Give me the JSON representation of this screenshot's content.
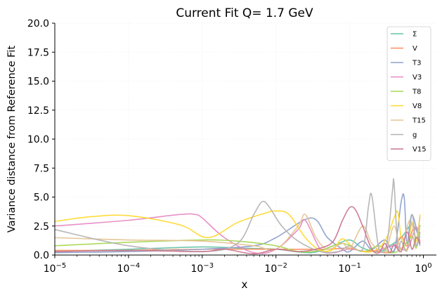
{
  "chart_data": {
    "type": "line",
    "title": "Current Fit Q= 1.7 GeV",
    "xlabel": "x",
    "ylabel": "Variance distance from Reference Fit",
    "x_scale": "log",
    "xlim": [
      1e-05,
      1.5
    ],
    "ylim": [
      0,
      20
    ],
    "x_ticks": [
      {
        "value": 1e-05,
        "base": "10",
        "exp": "−5"
      },
      {
        "value": 0.0001,
        "base": "10",
        "exp": "−4"
      },
      {
        "value": 0.001,
        "base": "10",
        "exp": "−3"
      },
      {
        "value": 0.01,
        "base": "10",
        "exp": "−2"
      },
      {
        "value": 0.1,
        "base": "10",
        "exp": "−1"
      },
      {
        "value": 1,
        "base": "10",
        "exp": "0"
      }
    ],
    "y_ticks": [
      {
        "value": 0,
        "label": "0.0"
      },
      {
        "value": 2.5,
        "label": "2.5"
      },
      {
        "value": 5,
        "label": "5.0"
      },
      {
        "value": 7.5,
        "label": "7.5"
      },
      {
        "value": 10,
        "label": "10.0"
      },
      {
        "value": 12.5,
        "label": "12.5"
      },
      {
        "value": 15,
        "label": "15.0"
      },
      {
        "value": 17.5,
        "label": "17.5"
      },
      {
        "value": 20,
        "label": "20.0"
      }
    ],
    "grid": true,
    "legend_position": "top-right",
    "series": [
      {
        "name": "Σ",
        "color": "#66c2a5",
        "x": [
          1e-05,
          0.0001,
          0.001,
          0.003,
          0.01,
          0.03,
          0.06,
          0.1,
          0.15,
          0.25,
          0.35,
          0.5,
          0.7,
          0.9
        ],
        "y": [
          0.3,
          0.5,
          0.7,
          0.6,
          0.5,
          0.2,
          0.8,
          1.3,
          0.6,
          0.3,
          0.8,
          1.5,
          2.6,
          1.5
        ]
      },
      {
        "name": "V",
        "color": "#fc8d62",
        "x": [
          1e-05,
          0.0001,
          0.001,
          0.01,
          0.05,
          0.1,
          0.15,
          0.2,
          0.3,
          0.4,
          0.5,
          0.6,
          0.75,
          0.9
        ],
        "y": [
          0.4,
          0.4,
          0.5,
          0.5,
          0.5,
          0.6,
          0.3,
          0.4,
          0.2,
          0.4,
          1.6,
          0.8,
          2.4,
          1.2
        ]
      },
      {
        "name": "T3",
        "color": "#8da0cb",
        "x": [
          1e-05,
          0.0001,
          0.001,
          0.005,
          0.01,
          0.03,
          0.05,
          0.08,
          0.1,
          0.15,
          0.2,
          0.3,
          0.4,
          0.5,
          0.55,
          0.6,
          0.7,
          0.9
        ],
        "y": [
          0.2,
          0.3,
          0.5,
          0.8,
          1.5,
          3.2,
          1.5,
          0.5,
          0.3,
          1.2,
          0.5,
          1.3,
          0.3,
          4.6,
          4.9,
          1.0,
          3.5,
          0.8
        ]
      },
      {
        "name": "V3",
        "color": "#e78ac3",
        "x": [
          1e-05,
          0.0001,
          0.0005,
          0.0008,
          0.001,
          0.002,
          0.005,
          0.01,
          0.02,
          0.025,
          0.04,
          0.06,
          0.1,
          0.2,
          0.4,
          0.6,
          0.8,
          0.9
        ],
        "y": [
          2.5,
          3.0,
          3.5,
          3.5,
          3.2,
          1.5,
          0.2,
          0.5,
          2.2,
          3.0,
          0.5,
          0.2,
          0.5,
          0.3,
          0.8,
          0.5,
          2.4,
          1.0
        ]
      },
      {
        "name": "T8",
        "color": "#a6d854",
        "x": [
          1e-05,
          0.0001,
          0.001,
          0.003,
          0.01,
          0.02,
          0.04,
          0.08,
          0.15,
          0.25,
          0.35,
          0.5,
          0.7,
          0.8,
          0.9
        ],
        "y": [
          0.8,
          1.1,
          1.3,
          1.2,
          0.8,
          0.3,
          0.4,
          1.0,
          0.3,
          0.8,
          0.2,
          0.5,
          1.6,
          0.6,
          2.6
        ]
      },
      {
        "name": "V8",
        "color": "#ffd92f",
        "x": [
          1e-05,
          3e-05,
          0.0001,
          0.0005,
          0.0012,
          0.003,
          0.007,
          0.01,
          0.015,
          0.025,
          0.04,
          0.06,
          0.08,
          0.12,
          0.2,
          0.3,
          0.4,
          0.45,
          0.5,
          0.6,
          0.7,
          0.8,
          0.9
        ],
        "y": [
          2.9,
          3.3,
          3.4,
          2.6,
          1.5,
          2.8,
          3.6,
          3.8,
          3.5,
          1.5,
          0.4,
          0.5,
          1.4,
          0.5,
          0.3,
          1.2,
          3.2,
          3.7,
          1.5,
          0.5,
          2.8,
          1.2,
          3.5
        ]
      },
      {
        "name": "T15",
        "color": "#e5c494",
        "x": [
          1e-05,
          0.0001,
          0.001,
          0.005,
          0.01,
          0.02,
          0.025,
          0.035,
          0.05,
          0.08,
          0.1,
          0.15,
          0.2,
          0.3,
          0.4,
          0.5,
          0.65,
          0.8,
          0.9
        ],
        "y": [
          1.5,
          1.3,
          1.2,
          0.8,
          0.5,
          2.5,
          3.5,
          1.5,
          0.5,
          1.0,
          0.5,
          2.5,
          1.0,
          0.3,
          2.5,
          0.5,
          3.0,
          1.5,
          3.3
        ]
      },
      {
        "name": "g",
        "color": "#b3b3b3",
        "x": [
          1e-05,
          0.0001,
          0.001,
          0.003,
          0.005,
          0.0065,
          0.008,
          0.012,
          0.02,
          0.04,
          0.07,
          0.1,
          0.15,
          0.18,
          0.2,
          0.25,
          0.32,
          0.38,
          0.4,
          0.45,
          0.5,
          0.6,
          0.7,
          0.8,
          0.9
        ],
        "y": [
          2.2,
          0.8,
          0.3,
          1.0,
          3.5,
          4.6,
          4.2,
          2.5,
          1.2,
          0.3,
          0.3,
          0.8,
          0.5,
          4.2,
          5.1,
          0.5,
          1.0,
          5.5,
          6.2,
          0.5,
          1.2,
          0.4,
          3.5,
          0.8,
          2.0
        ]
      },
      {
        "name": "V15",
        "color": "#c9778f",
        "x": [
          1e-05,
          0.0001,
          0.001,
          0.002,
          0.005,
          0.01,
          0.02,
          0.04,
          0.06,
          0.08,
          0.1,
          0.12,
          0.15,
          0.2,
          0.25,
          0.3,
          0.35,
          0.4,
          0.5,
          0.6,
          0.7,
          0.8,
          0.9
        ],
        "y": [
          0.3,
          0.4,
          0.3,
          0.5,
          0.1,
          0.5,
          0.3,
          0.6,
          1.2,
          3.0,
          4.1,
          3.9,
          2.5,
          0.5,
          0.2,
          1.0,
          0.2,
          0.9,
          0.3,
          2.0,
          0.5,
          1.5,
          1.0
        ]
      }
    ]
  }
}
